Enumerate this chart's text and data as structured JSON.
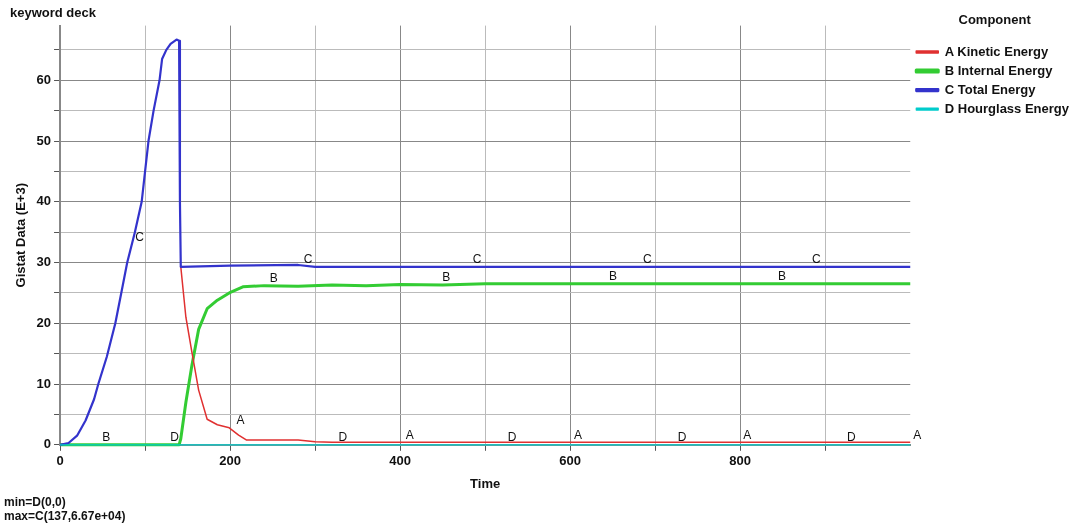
{
  "chart_data": {
    "type": "line",
    "title": "keyword deck",
    "xlabel": "Time",
    "ylabel": "Gistat Data (E+3)",
    "legend_title": "Component",
    "xlim": [
      0,
      1000
    ],
    "ylim": [
      0,
      69
    ],
    "xticks": [
      0,
      {
        "value": 100,
        "label": null
      },
      200,
      {
        "value": 300,
        "label": null
      },
      400,
      {
        "value": 500,
        "label": null
      },
      600,
      {
        "value": 700,
        "label": null
      },
      800,
      {
        "value": 900,
        "label": null
      }
    ],
    "yticks": [
      0,
      {
        "value": 5,
        "label": null
      },
      10,
      {
        "value": 15,
        "label": null
      },
      20,
      {
        "value": 25,
        "label": null
      },
      30,
      {
        "value": 35,
        "label": null
      },
      40,
      {
        "value": 45,
        "label": null
      },
      50,
      {
        "value": 55,
        "label": null
      },
      60,
      {
        "value": 65,
        "label": null
      }
    ],
    "grid": true,
    "legend": "top right",
    "marker": "none",
    "line_style": "solid",
    "series": [
      {
        "name": "A Kinetic Energy",
        "color": "#e03030",
        "x": [
          141,
          142,
          148,
          155,
          163,
          173,
          185,
          199,
          210,
          219,
          240,
          280,
          300,
          320,
          400,
          500,
          600,
          800,
          1000
        ],
        "values": [
          29.3,
          29.3,
          21,
          15.3,
          9,
          4.2,
          3.3,
          2.8,
          1.6,
          0.8,
          0.8,
          0.8,
          0.5,
          0.4,
          0.4,
          0.4,
          0.4,
          0.4,
          0.4
        ]
      },
      {
        "name": "B Internal Energy",
        "color": "#33cc33",
        "x": [
          0,
          140,
          142,
          148,
          155,
          163,
          173,
          185,
          199,
          215,
          240,
          280,
          320,
          360,
          400,
          450,
          500,
          600,
          700,
          800,
          900,
          1000
        ],
        "values": [
          0,
          0,
          1,
          7,
          13,
          19,
          22.4,
          23.8,
          25,
          26,
          26.2,
          26.1,
          26.3,
          26.2,
          26.4,
          26.3,
          26.5,
          26.5,
          26.5,
          26.5,
          26.5,
          26.5
        ]
      },
      {
        "name": "C Total Energy",
        "color": "#3333cc",
        "x": [
          0,
          10,
          20,
          30,
          40,
          45,
          55,
          65,
          72,
          79,
          88,
          96,
          100,
          104,
          110,
          117,
          120,
          125,
          130,
          137,
          140,
          141,
          142,
          200,
          280,
          300,
          1000
        ],
        "values": [
          0,
          0.3,
          1.5,
          4,
          7.5,
          10,
          14.5,
          20,
          25,
          30,
          35,
          40,
          45,
          50,
          55,
          60,
          63.5,
          65,
          66,
          66.7,
          66.5,
          40,
          29.3,
          29.5,
          29.6,
          29.3,
          29.3
        ]
      },
      {
        "name": "D Hourglass Energy",
        "color": "#00cccc",
        "x": [
          0,
          1000
        ],
        "values": [
          0,
          0
        ]
      }
    ],
    "annotations": [
      {
        "text": "A",
        "x": 204,
        "y": 2.8
      },
      {
        "text": "A",
        "x": 403,
        "y": 0.4
      },
      {
        "text": "A",
        "x": 601,
        "y": 0.4
      },
      {
        "text": "A",
        "x": 800,
        "y": 0.4
      },
      {
        "text": "A",
        "x": 1000,
        "y": 0.4
      },
      {
        "text": "B",
        "x": 46,
        "y": 0
      },
      {
        "text": "B",
        "x": 243,
        "y": 26.2
      },
      {
        "text": "B",
        "x": 446,
        "y": 26.3
      },
      {
        "text": "B",
        "x": 642,
        "y": 26.5
      },
      {
        "text": "B",
        "x": 841,
        "y": 26.5
      },
      {
        "text": "C",
        "x": 85,
        "y": 33
      },
      {
        "text": "C",
        "x": 283,
        "y": 29.3
      },
      {
        "text": "C",
        "x": 482,
        "y": 29.3
      },
      {
        "text": "C",
        "x": 682,
        "y": 29.3
      },
      {
        "text": "C",
        "x": 881,
        "y": 29.3
      },
      {
        "text": "D",
        "x": 126,
        "y": 0
      },
      {
        "text": "D",
        "x": 324,
        "y": 0
      },
      {
        "text": "D",
        "x": 523,
        "y": 0
      },
      {
        "text": "D",
        "x": 723,
        "y": 0
      },
      {
        "text": "D",
        "x": 922,
        "y": 0
      },
      "min=D(0,0)",
      "max=C(137,6.67e+04)"
    ]
  }
}
